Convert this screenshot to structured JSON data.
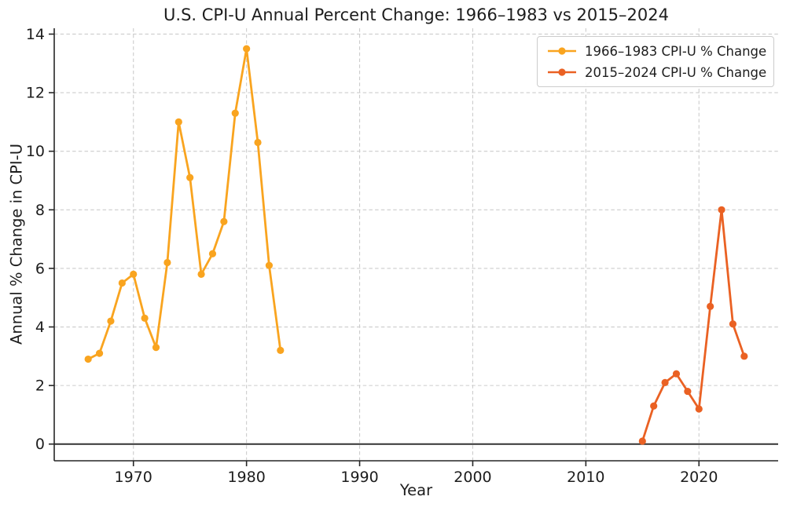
{
  "chart_data": {
    "type": "line",
    "title": "U.S. CPI-U Annual Percent Change: 1966–1983 vs 2015–2024",
    "xlabel": "Year",
    "ylabel": "Annual % Change in CPI-U",
    "grid": true,
    "legend_position": "upper right",
    "zero_line": true,
    "xlim": [
      1963.0,
      2027.0
    ],
    "ylim": [
      -0.57,
      14.2
    ],
    "x_ticks": [
      1970,
      1980,
      1990,
      2000,
      2010,
      2020
    ],
    "y_ticks": [
      0,
      2,
      4,
      6,
      8,
      10,
      12,
      14
    ],
    "series": [
      {
        "name": "1966–1983 CPI-U % Change",
        "color": "#F9A41F",
        "x": [
          1966,
          1967,
          1968,
          1969,
          1970,
          1971,
          1972,
          1973,
          1974,
          1975,
          1976,
          1977,
          1978,
          1979,
          1980,
          1981,
          1982,
          1983
        ],
        "values": [
          2.9,
          3.1,
          4.2,
          5.5,
          5.8,
          4.3,
          3.3,
          6.2,
          11.0,
          9.1,
          5.8,
          6.5,
          7.6,
          11.3,
          13.5,
          10.3,
          6.1,
          3.2
        ]
      },
      {
        "name": "2015–2024 CPI-U % Change",
        "color": "#EA6123",
        "x": [
          2015,
          2016,
          2017,
          2018,
          2019,
          2020,
          2021,
          2022,
          2023,
          2024
        ],
        "values": [
          0.1,
          1.3,
          2.1,
          2.4,
          1.8,
          1.2,
          4.7,
          8.0,
          4.1,
          3.0
        ]
      }
    ]
  }
}
